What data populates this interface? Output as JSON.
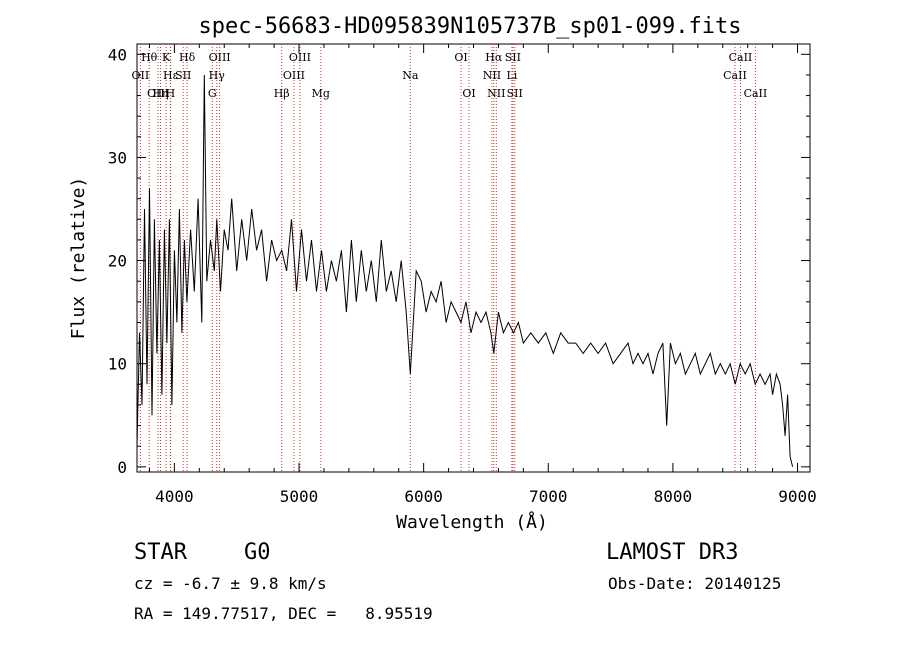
{
  "chart_data": {
    "type": "line",
    "title": "spec-56683-HD095839N105737B_sp01-099.fits",
    "xlabel": "Wavelength (Å)",
    "ylabel": "Flux (relative)",
    "xlim": [
      3700,
      9100
    ],
    "ylim": [
      -0.5,
      41
    ],
    "xticks": [
      "4000",
      "5000",
      "6000",
      "7000",
      "8000",
      "9000"
    ],
    "yticks": [
      "0",
      "10",
      "20",
      "30",
      "40"
    ],
    "series": [
      {
        "x": [
          3700,
          3720,
          3740,
          3760,
          3780,
          3800,
          3820,
          3840,
          3860,
          3880,
          3900,
          3920,
          3940,
          3960,
          3980,
          4000,
          4020,
          4040,
          4060,
          4080,
          4100,
          4130,
          4160,
          4190,
          4220,
          4240,
          4260,
          4290,
          4320,
          4340,
          4370,
          4400,
          4430,
          4460,
          4500,
          4540,
          4580,
          4620,
          4660,
          4700,
          4740,
          4780,
          4820,
          4861,
          4900,
          4940,
          4980,
          5020,
          5060,
          5100,
          5140,
          5180,
          5220,
          5260,
          5300,
          5340,
          5380,
          5420,
          5460,
          5500,
          5540,
          5580,
          5620,
          5660,
          5700,
          5740,
          5780,
          5820,
          5860,
          5893,
          5940,
          5980,
          6020,
          6060,
          6100,
          6140,
          6180,
          6220,
          6260,
          6300,
          6340,
          6380,
          6420,
          6460,
          6500,
          6540,
          6563,
          6600,
          6640,
          6680,
          6720,
          6760,
          6800,
          6860,
          6920,
          6980,
          7040,
          7100,
          7160,
          7220,
          7280,
          7340,
          7400,
          7460,
          7520,
          7580,
          7640,
          7680,
          7720,
          7760,
          7800,
          7840,
          7880,
          7920,
          7950,
          7980,
          8020,
          8060,
          8100,
          8140,
          8180,
          8220,
          8260,
          8300,
          8340,
          8380,
          8420,
          8460,
          8500,
          8540,
          8580,
          8620,
          8660,
          8700,
          8740,
          8780,
          8800,
          8830,
          8860,
          8880,
          8900,
          8920,
          8940,
          8960
        ],
        "y": [
          2,
          13,
          6,
          25,
          8,
          27,
          5,
          24,
          11,
          22,
          7,
          23,
          12,
          24,
          6,
          21,
          14,
          25,
          13,
          22,
          16,
          23,
          17,
          26,
          14,
          38,
          18,
          22,
          19,
          24,
          17,
          23,
          21,
          26,
          19,
          24,
          20,
          25,
          21,
          23,
          18,
          22,
          20,
          21,
          19,
          24,
          17,
          23,
          18,
          22,
          17,
          21,
          17,
          20,
          18,
          21,
          15,
          22,
          16,
          21,
          17,
          20,
          16,
          22,
          17,
          19,
          16,
          20,
          15,
          9,
          19,
          18,
          15,
          17,
          16,
          18,
          14,
          16,
          15,
          14,
          16,
          13,
          15,
          14,
          15,
          13,
          11,
          15,
          13,
          14,
          13,
          14,
          12,
          13,
          12,
          13,
          11,
          13,
          12,
          12,
          11,
          12,
          11,
          12,
          10,
          11,
          12,
          10,
          11,
          10,
          11,
          9,
          11,
          12,
          4,
          12,
          10,
          11,
          9,
          10,
          11,
          9,
          10,
          11,
          9,
          10,
          9,
          10,
          8,
          10,
          9,
          10,
          8,
          9,
          8,
          9,
          7,
          9,
          8,
          6,
          3,
          7,
          1,
          0
        ]
      }
    ],
    "lines": [
      {
        "label": "Hθ",
        "x": 3798,
        "row": 0
      },
      {
        "label": "OII",
        "x": 3727,
        "row": 1
      },
      {
        "label": "OIII",
        "x": 3869,
        "row": 2
      },
      {
        "label": "K",
        "x": 3934,
        "row": 0
      },
      {
        "label": "Hε",
        "x": 3970,
        "row": 1
      },
      {
        "label": "Hη",
        "x": 3889,
        "row": 2
      },
      {
        "label": "SII",
        "x": 4071,
        "row": 1
      },
      {
        "label": "Hδ",
        "x": 4102,
        "row": 0
      },
      {
        "label": "H",
        "x": 3968,
        "row": 2
      },
      {
        "label": "OIII",
        "x": 4363,
        "row": 0
      },
      {
        "label": "Hγ",
        "x": 4340,
        "row": 1
      },
      {
        "label": "G",
        "x": 4304,
        "row": 2
      },
      {
        "label": "Hβ",
        "x": 4861,
        "row": 2
      },
      {
        "label": "OIII",
        "x": 5007,
        "row": 0
      },
      {
        "label": "OIII",
        "x": 4959,
        "row": 1
      },
      {
        "label": "Mg",
        "x": 5175,
        "row": 2
      },
      {
        "label": "Na",
        "x": 5893,
        "row": 1
      },
      {
        "label": "OI",
        "x": 6300,
        "row": 0
      },
      {
        "label": "OI",
        "x": 6364,
        "row": 2
      },
      {
        "label": "Hα",
        "x": 6563,
        "row": 0
      },
      {
        "label": "NII",
        "x": 6548,
        "row": 1
      },
      {
        "label": "NII",
        "x": 6583,
        "row": 2
      },
      {
        "label": "SII",
        "x": 6716,
        "row": 0
      },
      {
        "label": "Li",
        "x": 6708,
        "row": 1
      },
      {
        "label": "SII",
        "x": 6731,
        "row": 2
      },
      {
        "label": "CaII",
        "x": 8542,
        "row": 0
      },
      {
        "label": "CaII",
        "x": 8498,
        "row": 1
      },
      {
        "label": "CaII",
        "x": 8662,
        "row": 2
      }
    ]
  },
  "info": {
    "class": "STAR",
    "subclass": "G0",
    "survey": "LAMOST DR3",
    "cz": "cz = -6.7 ± 9.8 km/s",
    "obsdate": "Obs-Date: 20140125",
    "radec": "RA = 149.77517, DEC =   8.95519"
  },
  "colors": {
    "spectrum": "#000000",
    "line_marker": "#c0392b",
    "axis": "#000000"
  }
}
